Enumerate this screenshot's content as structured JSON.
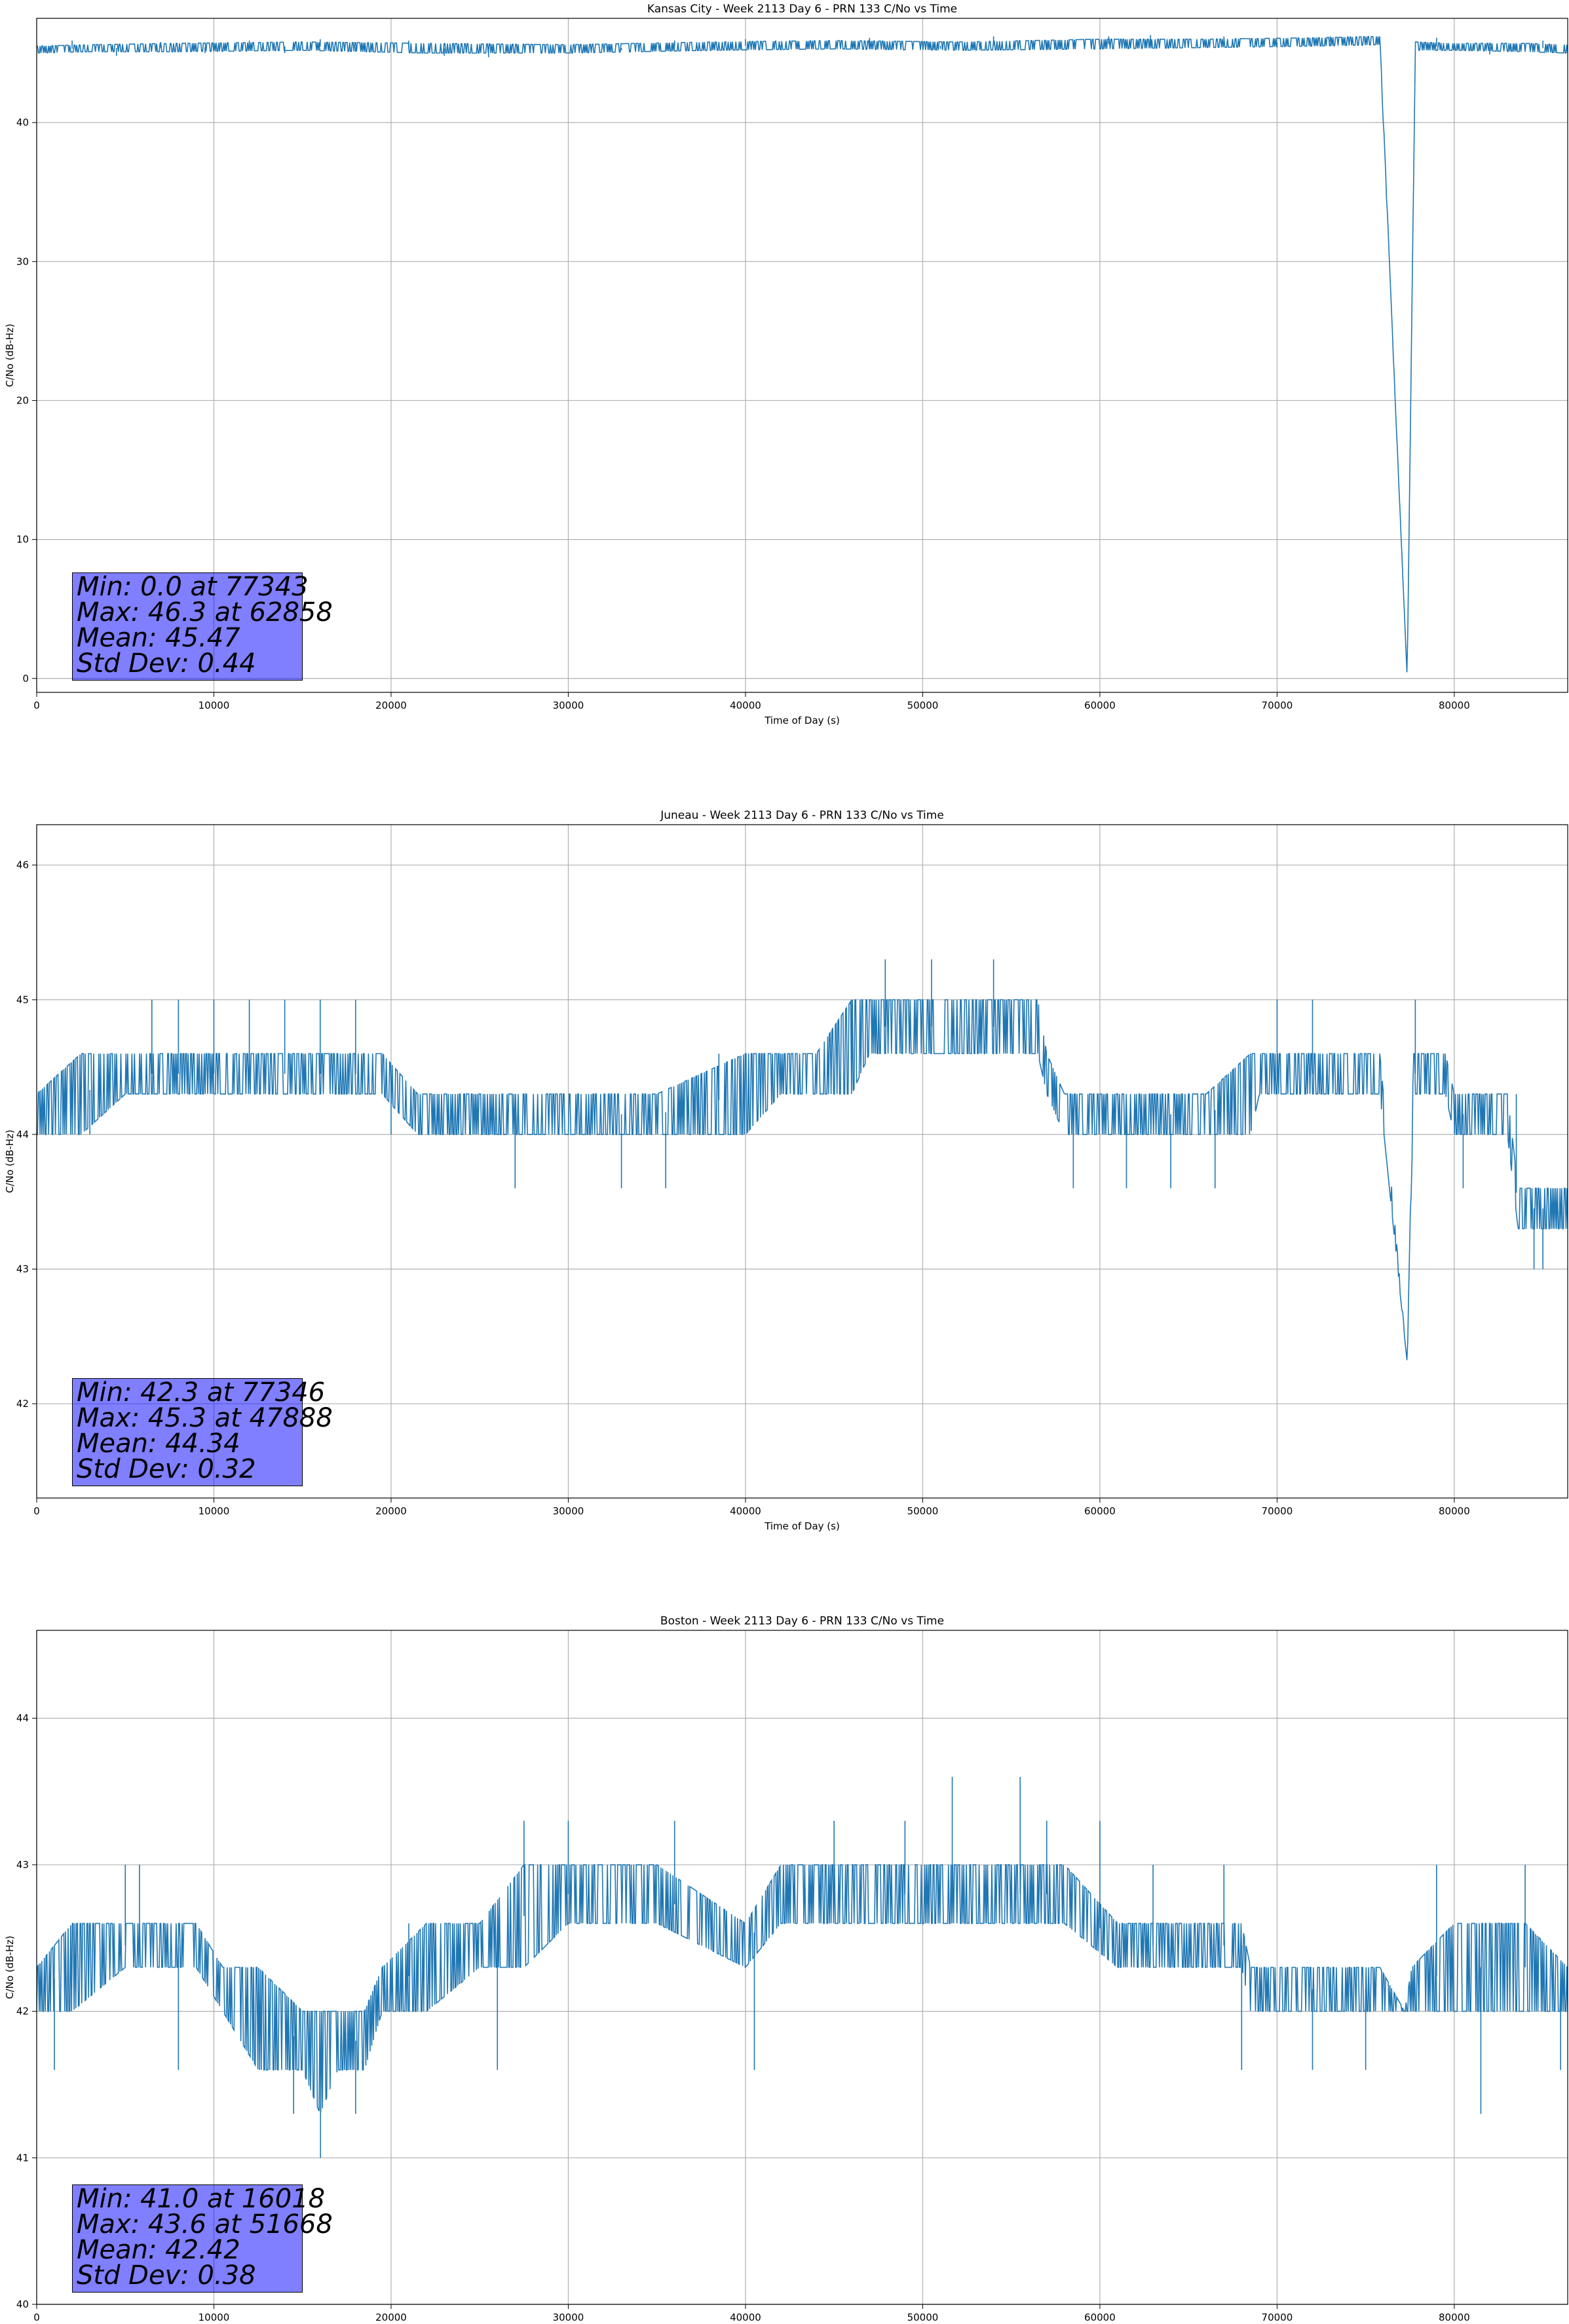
{
  "colors": {
    "series": "#1f77b4",
    "grid": "#b0b0b0",
    "stat_box": "#8080ff"
  },
  "chart_data": [
    {
      "type": "line",
      "title": "Kansas City - Week 2113 Day 6 - PRN 133 C/No vs Time",
      "xlabel": "Time of Day (s)",
      "ylabel": "C/No (dB-Hz)",
      "xlim": [
        0,
        86400
      ],
      "ylim": [
        -1,
        47.5
      ],
      "xticks": [
        0,
        10000,
        20000,
        30000,
        40000,
        50000,
        60000,
        70000,
        80000
      ],
      "yticks": [
        0,
        10,
        20,
        30,
        40
      ],
      "grid": true,
      "band": {
        "x": [
          0,
          3000,
          8000,
          15000,
          22000,
          30000,
          38000,
          45000,
          52000,
          60000,
          66000,
          72000,
          75800,
          77343,
          77800,
          80000,
          84000,
          86400
        ],
        "low": [
          45.0,
          45.1,
          45.1,
          45.2,
          45.0,
          45.0,
          45.2,
          45.3,
          45.2,
          45.3,
          45.4,
          45.5,
          45.6,
          0.0,
          45.2,
          45.2,
          45.1,
          45.0
        ],
        "high": [
          45.5,
          45.6,
          45.7,
          45.8,
          45.7,
          45.6,
          45.8,
          45.9,
          45.8,
          46.0,
          46.0,
          46.1,
          46.2,
          0.0,
          45.8,
          45.7,
          45.7,
          45.6
        ]
      },
      "spikes": {
        "x": [
          2000,
          4500,
          7000,
          9500,
          12000,
          14000,
          16000,
          18000,
          21000,
          23000,
          25500,
          27000,
          33000,
          36000,
          40000,
          42000,
          47000,
          51000,
          54000,
          57000,
          60500,
          62858,
          64000,
          67000,
          70000,
          73000,
          79000,
          82000,
          85000
        ],
        "y": [
          45.9,
          44.8,
          45.8,
          45.0,
          45.9,
          45.0,
          46.0,
          45.1,
          45.9,
          44.8,
          44.7,
          45.0,
          45.2,
          45.9,
          46.0,
          45.2,
          46.1,
          45.3,
          46.2,
          45.2,
          46.2,
          46.3,
          45.4,
          46.2,
          45.4,
          46.2,
          46.1,
          44.9,
          45.9
        ]
      },
      "stats": {
        "min": "Min: 0.0 at 77343",
        "max": "Max: 46.3 at 62858",
        "mean": "Mean: 45.47",
        "std": "Std Dev: 0.44"
      }
    },
    {
      "type": "line",
      "title": "Juneau - Week 2113 Day 6 - PRN 133 C/No vs Time",
      "xlabel": "Time of Day (s)",
      "ylabel": "C/No (dB-Hz)",
      "xlim": [
        0,
        86400
      ],
      "ylim": [
        41.3,
        46.3
      ],
      "xticks": [
        0,
        10000,
        20000,
        30000,
        40000,
        50000,
        60000,
        70000,
        80000
      ],
      "yticks": [
        42,
        43,
        44,
        45,
        46
      ],
      "grid": true,
      "band": {
        "x": [
          0,
          2500,
          5000,
          10000,
          15000,
          17500,
          19500,
          21500,
          25000,
          30000,
          35000,
          40000,
          42000,
          44000,
          46000,
          47000,
          50000,
          53000,
          56500,
          57000,
          58000,
          60000,
          63000,
          66000,
          68500,
          69000,
          72000,
          75800,
          77346,
          77700,
          79500,
          80000,
          83000,
          83600,
          86400
        ],
        "low": [
          44.0,
          44.0,
          44.3,
          44.3,
          44.3,
          44.3,
          44.3,
          44.0,
          44.0,
          44.0,
          44.0,
          44.0,
          44.3,
          44.3,
          44.3,
          44.6,
          44.6,
          44.6,
          44.6,
          44.3,
          44.0,
          44.0,
          44.0,
          44.0,
          44.0,
          44.3,
          44.3,
          44.3,
          42.3,
          44.3,
          44.3,
          44.0,
          44.0,
          43.3,
          43.3
        ],
        "high": [
          44.3,
          44.6,
          44.6,
          44.6,
          44.6,
          44.6,
          44.6,
          44.3,
          44.3,
          44.3,
          44.3,
          44.6,
          44.6,
          44.6,
          45.0,
          45.0,
          45.0,
          45.0,
          45.0,
          44.6,
          44.3,
          44.3,
          44.3,
          44.3,
          44.6,
          44.6,
          44.6,
          44.6,
          42.3,
          44.6,
          44.6,
          44.3,
          44.3,
          43.6,
          43.6
        ]
      },
      "spikes": {
        "x": [
          3000,
          6500,
          8000,
          10000,
          12000,
          14000,
          16000,
          18000,
          20000,
          23500,
          27000,
          33000,
          35500,
          38500,
          46000,
          47888,
          50500,
          54000,
          58500,
          61500,
          64000,
          66500,
          70000,
          72000,
          77800,
          80500,
          83500,
          84500,
          85000
        ],
        "y": [
          44.0,
          45.0,
          45.0,
          45.0,
          45.0,
          45.0,
          45.0,
          45.0,
          44.0,
          44.0,
          43.6,
          43.6,
          43.6,
          44.6,
          45.0,
          45.3,
          45.3,
          45.3,
          43.6,
          43.6,
          43.6,
          43.6,
          45.0,
          45.0,
          45.0,
          43.6,
          44.3,
          43.0,
          43.0
        ]
      },
      "stats": {
        "min": "Min: 42.3 at 77346",
        "max": "Max: 45.3 at 47888",
        "mean": "Mean: 44.34",
        "std": "Std Dev: 0.32"
      }
    },
    {
      "type": "line",
      "title": "Boston - Week 2113 Day 6 - PRN 133 C/No vs Time",
      "xlabel": "Time of Day (s)",
      "ylabel": "C/No (dB-Hz)",
      "xlim": [
        0,
        86400
      ],
      "ylim": [
        40.0,
        44.6
      ],
      "xticks": [
        0,
        10000,
        20000,
        30000,
        40000,
        50000,
        60000,
        70000,
        80000
      ],
      "yticks": [
        40,
        41,
        42,
        43,
        44
      ],
      "grid": true,
      "band": {
        "x": [
          0,
          2000,
          5000,
          9000,
          10500,
          12500,
          15000,
          16000,
          17000,
          18500,
          19500,
          22000,
          25000,
          27500,
          30000,
          35000,
          40000,
          42000,
          45000,
          48000,
          52000,
          55000,
          58000,
          61000,
          64000,
          68000,
          68500,
          72000,
          75800,
          77200,
          77600,
          80000,
          84000,
          86400
        ],
        "low": [
          42.0,
          42.0,
          42.3,
          42.3,
          42.0,
          41.6,
          41.6,
          41.3,
          41.6,
          41.6,
          42.0,
          42.0,
          42.3,
          42.3,
          42.6,
          42.6,
          42.3,
          42.6,
          42.6,
          42.6,
          42.6,
          42.6,
          42.6,
          42.3,
          42.3,
          42.3,
          42.0,
          42.0,
          42.0,
          42.0,
          42.0,
          42.0,
          42.0,
          42.0
        ],
        "high": [
          42.3,
          42.6,
          42.6,
          42.6,
          42.3,
          42.3,
          42.0,
          42.0,
          42.0,
          42.0,
          42.3,
          42.6,
          42.6,
          43.0,
          43.0,
          43.0,
          42.6,
          43.0,
          43.0,
          43.0,
          43.0,
          43.0,
          43.0,
          42.6,
          42.6,
          42.6,
          42.3,
          42.3,
          42.3,
          42.0,
          42.3,
          42.6,
          42.6,
          42.3
        ]
      },
      "spikes": {
        "x": [
          1000,
          5000,
          5800,
          8000,
          14500,
          16018,
          18000,
          21000,
          26000,
          27500,
          30000,
          36000,
          40500,
          45000,
          49000,
          51668,
          55500,
          57000,
          60000,
          63000,
          67000,
          68000,
          72000,
          75000,
          79000,
          81500,
          84000,
          86000
        ],
        "y": [
          41.6,
          43.0,
          43.0,
          41.6,
          41.3,
          41.0,
          41.3,
          42.6,
          41.6,
          43.3,
          43.3,
          43.3,
          41.6,
          43.3,
          43.3,
          43.6,
          43.6,
          43.3,
          43.3,
          43.0,
          43.0,
          41.6,
          41.6,
          41.6,
          43.0,
          41.3,
          43.0,
          41.6
        ]
      },
      "stats": {
        "min": "Min: 41.0 at 16018",
        "max": "Max: 43.6 at 51668",
        "mean": "Mean: 42.42",
        "std": "Std Dev: 0.38"
      }
    }
  ]
}
